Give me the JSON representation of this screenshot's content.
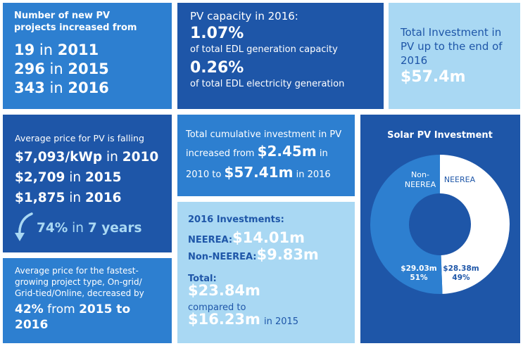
{
  "tile_projects": {
    "heading_1": "Number of new PV",
    "heading_2": "projects increased from",
    "rows": [
      {
        "value": "19",
        "mid": " in ",
        "year": "2011"
      },
      {
        "value": "296",
        "mid": " in ",
        "year": "2015"
      },
      {
        "value": "343",
        "mid": " in ",
        "year": "2016"
      }
    ]
  },
  "tile_capacity": {
    "heading": "PV capacity in 2016:",
    "stat_1": "1.07%",
    "stat_1_label": "of total EDL generation capacity",
    "stat_2": "0.26%",
    "stat_2_label": "of total EDL electricity generation"
  },
  "tile_total_investment": {
    "line_1": "Total Investment in",
    "line_2": "PV up to the end of",
    "line_3": "2016",
    "value": "$57.4m"
  },
  "tile_price": {
    "heading": "Average price for PV is falling",
    "rows": [
      {
        "value": "$7,093/kWp",
        "mid": " in ",
        "year": "2010"
      },
      {
        "value": "$2,709",
        "mid": " in ",
        "year": "2015"
      },
      {
        "value": "$1,875",
        "mid": " in ",
        "year": "2016"
      }
    ],
    "drop_value": "74%",
    "drop_text": " in ",
    "drop_years": "7 years"
  },
  "tile_cumulative": {
    "text_1": "Total cumulative investment in PV",
    "text_2": "increased from",
    "value_1": "$2.45m",
    "text_3": "in",
    "text_4": "2010 to",
    "value_2": "$57.41m",
    "text_5": "in 2016"
  },
  "tile_investments_2016": {
    "heading": "2016 Investments:",
    "neerea_label": "NEEREA:",
    "neerea_value": "$14.01m",
    "non_neerea_label": "Non-NEEREA:",
    "non_neerea_value": "$9.83m",
    "total_label": "Total:",
    "total_value": "$23.84m",
    "compared_text": "compared to",
    "compared_value": "$16.23m",
    "compared_year": "in 2015"
  },
  "tile_fastest": {
    "line_1": "Average price for the fastest-",
    "line_2": "growing project type, On-grid/",
    "line_3": "Grid-tied/Online, decreased by",
    "value": "42%",
    "line_4_tail": " from ",
    "line_4_end": "2015 to",
    "line_5": "2016"
  },
  "chart_data": {
    "type": "pie",
    "title": "Solar PV Investment",
    "categories": [
      "NEEREA",
      "Non-NEEREA"
    ],
    "category_label_lines": [
      [
        "NEEREA"
      ],
      [
        "Non-",
        "NEEREA"
      ]
    ],
    "values": [
      28.38,
      29.03
    ],
    "value_labels": [
      "$28.38m",
      "$29.03m"
    ],
    "percent_labels": [
      "49%",
      "51%"
    ],
    "donut": true
  },
  "colors": {
    "mid_blue": "#2d7fd0",
    "dark_blue": "#1e56a8",
    "light_blue": "#a9d8f3",
    "neerea_slice": "#ffffff",
    "non_neerea_slice": "#2d7fd0"
  }
}
